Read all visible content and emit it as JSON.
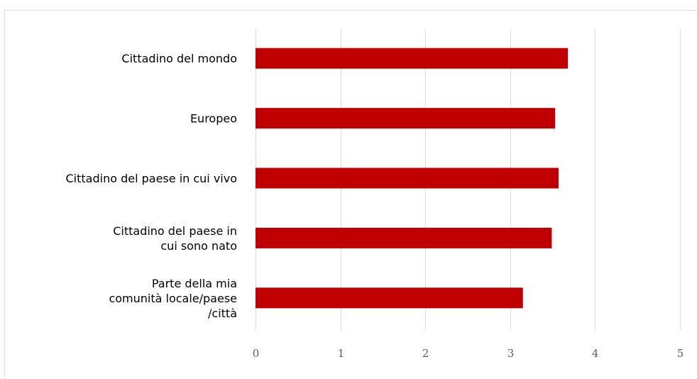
{
  "chart_data": {
    "type": "bar",
    "orientation": "horizontal",
    "categories": [
      [
        "Cittadino del mondo"
      ],
      [
        "Europeo"
      ],
      [
        "Cittadino del paese in cui vivo"
      ],
      [
        "Cittadino del paese in",
        "cui sono nato"
      ],
      [
        "Parte della mia",
        "comunità locale/paese",
        "/città"
      ]
    ],
    "values": [
      3.68,
      3.53,
      3.57,
      3.49,
      3.15
    ],
    "xlim": [
      0,
      5
    ],
    "xticks": [
      "0",
      "1",
      "2",
      "3",
      "4",
      "5"
    ],
    "title": "",
    "xlabel": "",
    "ylabel": "",
    "grid": "vertical",
    "legend": "none",
    "bar_color": "#c00000",
    "gridline_color": "#d9d9d9"
  }
}
